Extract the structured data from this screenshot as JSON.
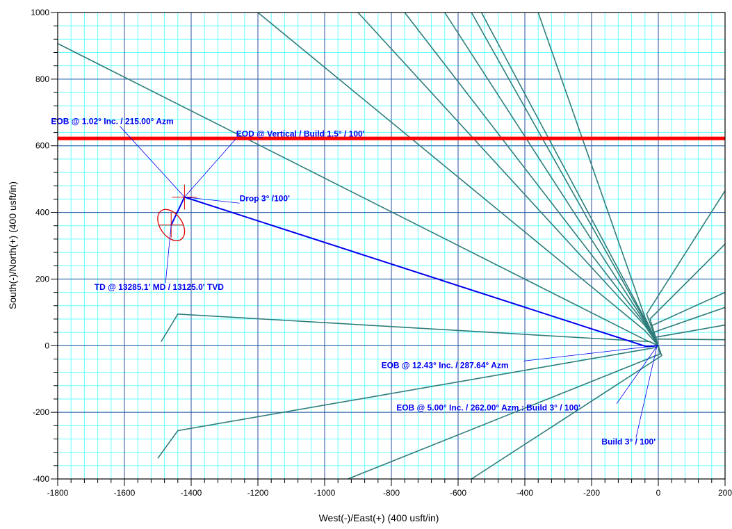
{
  "chart_data": {
    "type": "line",
    "xlabel": "West(-)/East(+)  (400  usft/in)",
    "ylabel": "South(-)/North(+)  (400  usft/in)",
    "xlim": [
      -1800,
      200
    ],
    "ylim": [
      -400,
      1000
    ],
    "x_ticks": [
      -1800,
      -1600,
      -1400,
      -1200,
      -1000,
      -800,
      -600,
      -400,
      -200,
      0,
      200
    ],
    "y_ticks": [
      -400,
      -200,
      0,
      200,
      400,
      600,
      800,
      1000
    ],
    "grid": true,
    "minor_grid_step": 40,
    "colors": {
      "minor_grid": "#66ffff",
      "major_grid": "#2a4f9b",
      "offset_wells": "#2e7d7a",
      "planned_well": "#0000ee",
      "hard_line": "#ff0000",
      "target": "#dd0000",
      "annotation": "#0000ee"
    },
    "hard_line": {
      "y": 622
    },
    "planned_well": [
      [
        0,
        0
      ],
      [
        -35,
        -3
      ],
      [
        -1420,
        446
      ],
      [
        -1460,
        362
      ]
    ],
    "target": {
      "x": -1460,
      "y": 362,
      "rx": 60,
      "ry": 95,
      "angle": -35
    },
    "section_markers": [
      [
        -1420,
        446
      ],
      [
        -1460,
        362
      ]
    ],
    "offset_wells": [
      [
        [
          0,
          0
        ],
        [
          -25,
          12
        ],
        [
          -1440,
          95
        ],
        [
          -1490,
          12
        ]
      ],
      [
        [
          0,
          0
        ],
        [
          -40,
          18
        ],
        [
          -1800,
          907
        ]
      ],
      [
        [
          0,
          0
        ],
        [
          -40,
          45
        ],
        [
          -1200,
          1000
        ]
      ],
      [
        [
          0,
          0
        ],
        [
          -40,
          60
        ],
        [
          -900,
          1000
        ]
      ],
      [
        [
          0,
          0
        ],
        [
          -40,
          65
        ],
        [
          -760,
          1000
        ]
      ],
      [
        [
          0,
          0
        ],
        [
          -40,
          70
        ],
        [
          -640,
          1000
        ]
      ],
      [
        [
          0,
          0
        ],
        [
          -40,
          75
        ],
        [
          -560,
          1000
        ]
      ],
      [
        [
          0,
          0
        ],
        [
          -40,
          80
        ],
        [
          -530,
          1000
        ]
      ],
      [
        [
          0,
          0
        ],
        [
          -40,
          85
        ],
        [
          -360,
          1000
        ]
      ],
      [
        [
          0,
          0
        ],
        [
          -35,
          95
        ],
        [
          200,
          465
        ]
      ],
      [
        [
          0,
          0
        ],
        [
          -25,
          80
        ],
        [
          200,
          305
        ]
      ],
      [
        [
          0,
          0
        ],
        [
          -20,
          60
        ],
        [
          200,
          160
        ]
      ],
      [
        [
          0,
          0
        ],
        [
          -15,
          40
        ],
        [
          200,
          115
        ]
      ],
      [
        [
          0,
          0
        ],
        [
          -10,
          25
        ],
        [
          200,
          62
        ]
      ],
      [
        [
          0,
          0
        ],
        [
          -10,
          20
        ],
        [
          200,
          18
        ]
      ],
      [
        [
          0,
          0
        ],
        [
          -5,
          -5
        ],
        [
          -1440,
          -255
        ],
        [
          -1500,
          -338
        ]
      ],
      [
        [
          0,
          0
        ],
        [
          5,
          -25
        ],
        [
          -930,
          -400
        ]
      ],
      [
        [
          0,
          0
        ],
        [
          10,
          -30
        ],
        [
          -560,
          -400
        ]
      ]
    ],
    "annotations": [
      {
        "text": "EOB @ 1.02° Inc. / 215.00° Azm",
        "x": -1820,
        "y": 665,
        "anchor": [
          -1420,
          446
        ]
      },
      {
        "text": "EOD @ Vertical / Build 1.5° / 100'",
        "x": -1265,
        "y": 628,
        "anchor": [
          -1420,
          446
        ]
      },
      {
        "text": "Drop 3° /100'",
        "x": -1255,
        "y": 434,
        "anchor": [
          -1420,
          446
        ]
      },
      {
        "text": "TD @ 13285.1' MD / 13125.0' TVD",
        "x": -1690,
        "y": 167,
        "anchor": [
          -1460,
          362
        ]
      },
      {
        "text": "EOB @ 12.43° Inc. / 287.64° Azm",
        "x": -830,
        "y": -67,
        "anchor": [
          -5,
          0
        ]
      },
      {
        "text": "EOB @ 5.00° Inc. / 262.00° Azm : Build 3° / 100'",
        "x": -785,
        "y": -195,
        "anchor": [
          -5,
          -3
        ]
      },
      {
        "text": "Build 3° / 100'",
        "x": -170,
        "y": -297,
        "anchor": [
          -5,
          -5
        ]
      }
    ]
  }
}
